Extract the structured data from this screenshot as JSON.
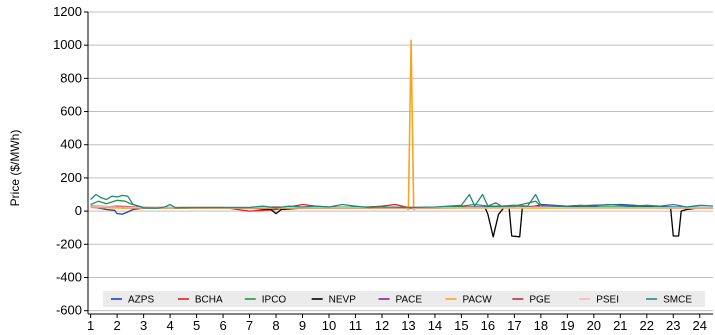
{
  "chart_data": {
    "type": "line",
    "title": "",
    "xlabel": "",
    "ylabel": "Price ($/MWh)",
    "x_ticks": [
      "1",
      "2",
      "3",
      "4",
      "5",
      "6",
      "7",
      "8",
      "9",
      "10",
      "11",
      "12",
      "13",
      "14",
      "15",
      "16",
      "17",
      "18",
      "19",
      "20",
      "21",
      "22",
      "23",
      "24"
    ],
    "xlim": [
      0.9,
      24.5
    ],
    "ylim": [
      -620,
      1200
    ],
    "y_ticks": [
      -600,
      -400,
      -200,
      0,
      200,
      400,
      600,
      800,
      1000,
      1200
    ],
    "grid": "horizontal",
    "legend_position": "bottom-inside",
    "series": [
      {
        "name": "AZPS",
        "color": "#1f3fbf",
        "points": [
          [
            1,
            25
          ],
          [
            1.3,
            18
          ],
          [
            1.6,
            10
          ],
          [
            1.9,
            5
          ],
          [
            2,
            -15
          ],
          [
            2.2,
            -18
          ],
          [
            2.4,
            -5
          ],
          [
            2.6,
            10
          ],
          [
            3,
            18
          ],
          [
            4,
            18
          ],
          [
            5,
            18
          ],
          [
            6,
            18
          ],
          [
            7,
            18
          ],
          [
            8,
            16
          ],
          [
            9,
            18
          ],
          [
            10,
            18
          ],
          [
            11,
            18
          ],
          [
            12,
            18
          ],
          [
            13,
            18
          ],
          [
            14,
            18
          ],
          [
            15,
            25
          ],
          [
            16,
            25
          ],
          [
            17,
            22
          ],
          [
            17.8,
            30
          ],
          [
            18,
            40
          ],
          [
            19,
            30
          ],
          [
            20,
            35
          ],
          [
            21,
            40
          ],
          [
            22,
            30
          ],
          [
            23,
            25
          ],
          [
            24,
            22
          ],
          [
            24.5,
            20
          ]
        ]
      },
      {
        "name": "BCHA",
        "color": "#e02020",
        "points": [
          [
            1,
            30
          ],
          [
            1.5,
            25
          ],
          [
            2,
            30
          ],
          [
            3,
            22
          ],
          [
            4,
            22
          ],
          [
            5,
            22
          ],
          [
            6,
            22
          ],
          [
            7,
            0
          ],
          [
            7.5,
            5
          ],
          [
            8,
            10
          ],
          [
            8.5,
            25
          ],
          [
            9,
            40
          ],
          [
            9.5,
            30
          ],
          [
            10,
            25
          ],
          [
            11,
            20
          ],
          [
            12,
            30
          ],
          [
            12.5,
            40
          ],
          [
            13,
            22
          ],
          [
            14,
            22
          ],
          [
            15,
            25
          ],
          [
            16,
            20
          ],
          [
            17,
            22
          ],
          [
            18,
            25
          ],
          [
            19,
            22
          ],
          [
            20,
            20
          ],
          [
            21,
            20
          ],
          [
            22,
            22
          ],
          [
            23,
            20
          ],
          [
            24,
            20
          ],
          [
            24.5,
            18
          ]
        ]
      },
      {
        "name": "IPCO",
        "color": "#1f9a3a",
        "points": [
          [
            1,
            40
          ],
          [
            1.3,
            60
          ],
          [
            1.6,
            45
          ],
          [
            2,
            65
          ],
          [
            2.3,
            60
          ],
          [
            2.5,
            45
          ],
          [
            3,
            22
          ],
          [
            4,
            22
          ],
          [
            5,
            22
          ],
          [
            6,
            22
          ],
          [
            7,
            22
          ],
          [
            8,
            25
          ],
          [
            9,
            22
          ],
          [
            10,
            22
          ],
          [
            11,
            25
          ],
          [
            12,
            25
          ],
          [
            13,
            22
          ],
          [
            14,
            22
          ],
          [
            15,
            30
          ],
          [
            15.5,
            40
          ],
          [
            16,
            30
          ],
          [
            17,
            30
          ],
          [
            17.8,
            60
          ],
          [
            18,
            30
          ],
          [
            19,
            25
          ],
          [
            20,
            25
          ],
          [
            21,
            25
          ],
          [
            22,
            25
          ],
          [
            23,
            22
          ],
          [
            24,
            22
          ],
          [
            24.5,
            20
          ]
        ]
      },
      {
        "name": "NEVP",
        "color": "#000000",
        "points": [
          [
            1,
            30
          ],
          [
            2,
            20
          ],
          [
            3,
            18
          ],
          [
            4,
            18
          ],
          [
            5,
            18
          ],
          [
            6,
            18
          ],
          [
            7,
            18
          ],
          [
            7.8,
            10
          ],
          [
            8,
            -15
          ],
          [
            8.2,
            10
          ],
          [
            9,
            18
          ],
          [
            10,
            18
          ],
          [
            11,
            18
          ],
          [
            12,
            18
          ],
          [
            13,
            18
          ],
          [
            14,
            18
          ],
          [
            15,
            20
          ],
          [
            15.9,
            20
          ],
          [
            16,
            -20
          ],
          [
            16.2,
            -155
          ],
          [
            16.4,
            -20
          ],
          [
            16.6,
            20
          ],
          [
            16.8,
            20
          ],
          [
            16.9,
            -150
          ],
          [
            17.2,
            -155
          ],
          [
            17.3,
            20
          ],
          [
            18,
            25
          ],
          [
            19,
            22
          ],
          [
            20,
            22
          ],
          [
            21,
            22
          ],
          [
            22,
            22
          ],
          [
            22.9,
            20
          ],
          [
            23,
            -150
          ],
          [
            23.2,
            -150
          ],
          [
            23.3,
            0
          ],
          [
            23.5,
            10
          ],
          [
            24,
            20
          ],
          [
            24.5,
            18
          ]
        ]
      },
      {
        "name": "PACE",
        "color": "#7a2a8a",
        "points": [
          [
            1,
            28
          ],
          [
            2,
            22
          ],
          [
            3,
            18
          ],
          [
            4,
            18
          ],
          [
            5,
            18
          ],
          [
            6,
            18
          ],
          [
            7,
            18
          ],
          [
            8,
            20
          ],
          [
            9,
            18
          ],
          [
            10,
            18
          ],
          [
            11,
            18
          ],
          [
            12,
            18
          ],
          [
            13,
            18
          ],
          [
            14,
            18
          ],
          [
            15,
            20
          ],
          [
            16,
            20
          ],
          [
            17,
            20
          ],
          [
            18,
            30
          ],
          [
            19,
            22
          ],
          [
            20,
            20
          ],
          [
            21,
            20
          ],
          [
            22,
            20
          ],
          [
            23,
            18
          ],
          [
            24,
            18
          ],
          [
            24.5,
            18
          ]
        ]
      },
      {
        "name": "PACW",
        "color": "#f5a623",
        "points": [
          [
            1,
            22
          ],
          [
            2,
            20
          ],
          [
            3,
            18
          ],
          [
            4,
            18
          ],
          [
            5,
            18
          ],
          [
            6,
            18
          ],
          [
            7,
            18
          ],
          [
            8,
            18
          ],
          [
            9,
            18
          ],
          [
            10,
            18
          ],
          [
            11,
            18
          ],
          [
            12,
            18
          ],
          [
            12.9,
            18
          ],
          [
            13,
            10
          ],
          [
            13.1,
            1030
          ],
          [
            13.2,
            10
          ],
          [
            13.3,
            18
          ],
          [
            14,
            18
          ],
          [
            15,
            18
          ],
          [
            16,
            18
          ],
          [
            17,
            18
          ],
          [
            18,
            20
          ],
          [
            19,
            18
          ],
          [
            20,
            18
          ],
          [
            21,
            18
          ],
          [
            22,
            18
          ],
          [
            23,
            18
          ],
          [
            24,
            18
          ],
          [
            24.5,
            18
          ]
        ]
      },
      {
        "name": "PGE",
        "color": "#b03050",
        "points": [
          [
            1,
            32
          ],
          [
            2,
            25
          ],
          [
            3,
            20
          ],
          [
            4,
            20
          ],
          [
            5,
            20
          ],
          [
            6,
            20
          ],
          [
            7,
            20
          ],
          [
            8,
            25
          ],
          [
            9,
            22
          ],
          [
            10,
            20
          ],
          [
            11,
            20
          ],
          [
            12,
            22
          ],
          [
            13,
            20
          ],
          [
            14,
            20
          ],
          [
            15,
            22
          ],
          [
            16,
            22
          ],
          [
            17,
            22
          ],
          [
            18,
            28
          ],
          [
            19,
            22
          ],
          [
            20,
            22
          ],
          [
            21,
            20
          ],
          [
            22,
            20
          ],
          [
            23,
            20
          ],
          [
            24,
            20
          ],
          [
            24.5,
            20
          ]
        ]
      },
      {
        "name": "PSEI",
        "color": "#f5b8c0",
        "points": [
          [
            1,
            30
          ],
          [
            2,
            25
          ],
          [
            3,
            20
          ],
          [
            4,
            20
          ],
          [
            5,
            20
          ],
          [
            6,
            20
          ],
          [
            7,
            20
          ],
          [
            8,
            22
          ],
          [
            9,
            20
          ],
          [
            10,
            20
          ],
          [
            11,
            20
          ],
          [
            12,
            20
          ],
          [
            13,
            20
          ],
          [
            14,
            20
          ],
          [
            15,
            20
          ],
          [
            16,
            20
          ],
          [
            17,
            20
          ],
          [
            18,
            25
          ],
          [
            19,
            20
          ],
          [
            20,
            20
          ],
          [
            21,
            20
          ],
          [
            22,
            20
          ],
          [
            23,
            20
          ],
          [
            24,
            20
          ],
          [
            24.5,
            20
          ]
        ]
      },
      {
        "name": "SMCE",
        "color": "#1f8a7a",
        "points": [
          [
            1,
            70
          ],
          [
            1.2,
            100
          ],
          [
            1.4,
            80
          ],
          [
            1.6,
            70
          ],
          [
            1.8,
            90
          ],
          [
            2,
            85
          ],
          [
            2.2,
            95
          ],
          [
            2.4,
            90
          ],
          [
            2.6,
            40
          ],
          [
            3,
            20
          ],
          [
            3.5,
            18
          ],
          [
            3.8,
            25
          ],
          [
            4,
            40
          ],
          [
            4.2,
            20
          ],
          [
            5,
            22
          ],
          [
            6,
            22
          ],
          [
            7,
            22
          ],
          [
            7.5,
            30
          ],
          [
            8,
            20
          ],
          [
            8.5,
            30
          ],
          [
            9,
            25
          ],
          [
            9.5,
            30
          ],
          [
            10,
            25
          ],
          [
            10.5,
            40
          ],
          [
            11,
            30
          ],
          [
            11.5,
            22
          ],
          [
            12,
            25
          ],
          [
            13,
            22
          ],
          [
            14,
            25
          ],
          [
            14.5,
            30
          ],
          [
            15,
            35
          ],
          [
            15.3,
            100
          ],
          [
            15.5,
            30
          ],
          [
            15.8,
            100
          ],
          [
            16,
            30
          ],
          [
            16.3,
            50
          ],
          [
            16.5,
            30
          ],
          [
            17,
            35
          ],
          [
            17.5,
            30
          ],
          [
            17.8,
            100
          ],
          [
            18,
            35
          ],
          [
            18.5,
            30
          ],
          [
            19,
            30
          ],
          [
            19.5,
            35
          ],
          [
            20,
            30
          ],
          [
            20.5,
            40
          ],
          [
            21,
            35
          ],
          [
            21.5,
            30
          ],
          [
            22,
            35
          ],
          [
            22.5,
            30
          ],
          [
            23,
            40
          ],
          [
            23.5,
            25
          ],
          [
            24,
            35
          ],
          [
            24.5,
            30
          ]
        ]
      }
    ]
  }
}
